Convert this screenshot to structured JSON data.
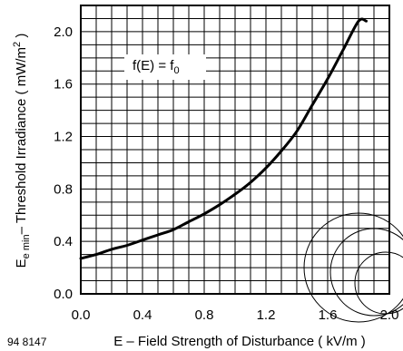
{
  "chart_data": {
    "type": "line",
    "figure_id": "94 8147",
    "xlabel": "E – Field Strength of Disturbance ( kV/m )",
    "ylabel": "Eₑ min – Threshold Irradiance ( mW/m² )",
    "xlim": [
      0.0,
      2.0
    ],
    "ylim": [
      0.0,
      2.2
    ],
    "xticks": [
      "0.0",
      "0.4",
      "0.8",
      "1.2",
      "1.6",
      "2.0"
    ],
    "yticks": [
      "0.0",
      "0.4",
      "0.8",
      "1.2",
      "1.6",
      "2.0"
    ],
    "grid": true,
    "annotation": "f(E) = f0",
    "series": [
      {
        "x": [
          0.0,
          0.1,
          0.2,
          0.3,
          0.4,
          0.5,
          0.6,
          0.7,
          0.8,
          0.9,
          1.0,
          1.1,
          1.2,
          1.3,
          1.4,
          1.5,
          1.6,
          1.7,
          1.8,
          1.9
        ],
        "y": [
          0.27,
          0.3,
          0.34,
          0.37,
          0.41,
          0.45,
          0.49,
          0.55,
          0.61,
          0.68,
          0.76,
          0.85,
          0.96,
          1.09,
          1.24,
          1.44,
          1.64,
          1.86,
          2.08,
          2.08
        ]
      }
    ]
  },
  "labels": {
    "ylabel_main": "E",
    "ylabel_sub": "e min",
    "ylabel_rest": "– Threshold Irradiance ( mW/m",
    "ylabel_sup": "2",
    "ylabel_end": " )",
    "annot_base": "f(E) = f",
    "annot_sub": "0"
  }
}
